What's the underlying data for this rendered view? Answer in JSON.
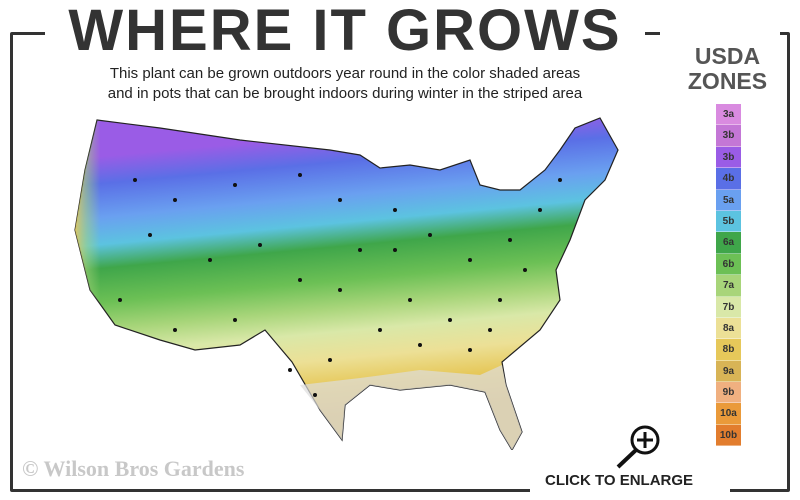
{
  "header": {
    "title": "WHERE IT GROWS",
    "subtitle_line1": "This plant can be grown outdoors year round in the color shaded areas",
    "subtitle_line2": "and in pots that can be brought indoors during winter in the striped area"
  },
  "legend": {
    "title_line1": "USDA",
    "title_line2": "ZONES",
    "zones": [
      {
        "label": "3a",
        "color": "#d98be0"
      },
      {
        "label": "3b",
        "color": "#c477d6"
      },
      {
        "label": "3b",
        "color": "#9a5ce6"
      },
      {
        "label": "4b",
        "color": "#5a6fe6"
      },
      {
        "label": "5a",
        "color": "#6aa0f0"
      },
      {
        "label": "5b",
        "color": "#5cc3e0"
      },
      {
        "label": "6a",
        "color": "#3fa64a"
      },
      {
        "label": "6b",
        "color": "#6cc055"
      },
      {
        "label": "7a",
        "color": "#a8d57a"
      },
      {
        "label": "7b",
        "color": "#d9e8a8"
      },
      {
        "label": "8a",
        "color": "#ece096"
      },
      {
        "label": "8b",
        "color": "#e6c85a"
      },
      {
        "label": "9a",
        "color": "#d8b456"
      },
      {
        "label": "9b",
        "color": "#f0b080"
      },
      {
        "label": "10a",
        "color": "#ea9a3a"
      },
      {
        "label": "10b",
        "color": "#e27d2e"
      }
    ]
  },
  "footer": {
    "copyright": "© Wilson Bros Gardens",
    "enlarge_label": "CLICK TO ENLARGE"
  }
}
